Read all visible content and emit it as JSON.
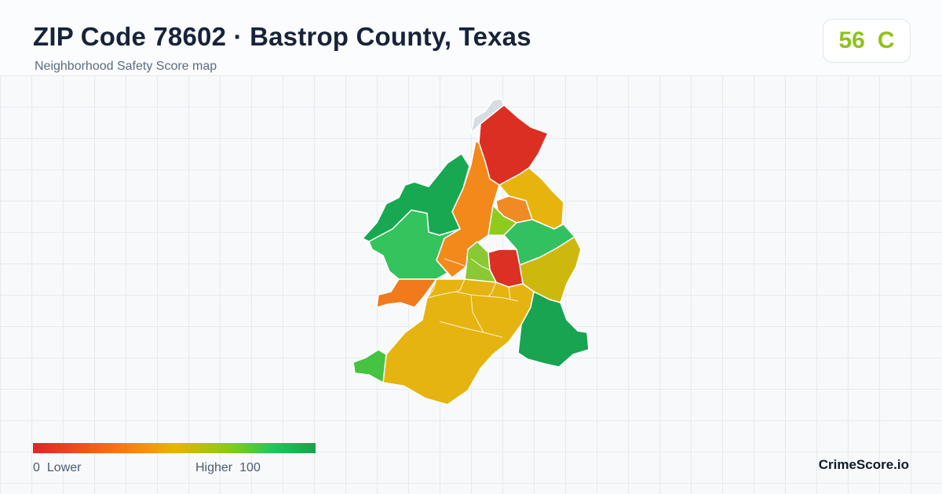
{
  "header": {
    "title": "ZIP Code 78602 · Bastrop County, Texas",
    "subtitle": "Neighborhood Safety Score map"
  },
  "score": {
    "value": "56",
    "grade": "C",
    "color": "#8ec21a"
  },
  "legend": {
    "low_value": "0",
    "low_label": "Lower",
    "high_label": "Higher",
    "high_value": "100",
    "colors": [
      "#dc2626",
      "#f97316",
      "#eab308",
      "#84cc16",
      "#22c55e",
      "#16a34a"
    ]
  },
  "brand": "CrimeScore.io",
  "map": {
    "regions": [
      {
        "name": "north-excluded",
        "color": "#d8dde3"
      },
      {
        "name": "north-tip",
        "color": "#dc2f24"
      },
      {
        "name": "central-corridor",
        "color": "#f2891a"
      },
      {
        "name": "northeast",
        "color": "#e7b40d"
      },
      {
        "name": "northeast-inner",
        "color": "#f08a25"
      },
      {
        "name": "central-north",
        "color": "#8fcb1f"
      },
      {
        "name": "northwest",
        "color": "#19a852"
      },
      {
        "name": "west",
        "color": "#34c35d"
      },
      {
        "name": "east",
        "color": "#33c060"
      },
      {
        "name": "east-south",
        "color": "#cdb80e"
      },
      {
        "name": "downtown-red",
        "color": "#dc3025"
      },
      {
        "name": "downtown-core",
        "color": "#8bc934"
      },
      {
        "name": "west-orange",
        "color": "#f07a1c"
      },
      {
        "name": "southwest-tip",
        "color": "#e5b410"
      },
      {
        "name": "south",
        "color": "#46c341"
      },
      {
        "name": "southeast",
        "color": "#18a450"
      }
    ]
  }
}
